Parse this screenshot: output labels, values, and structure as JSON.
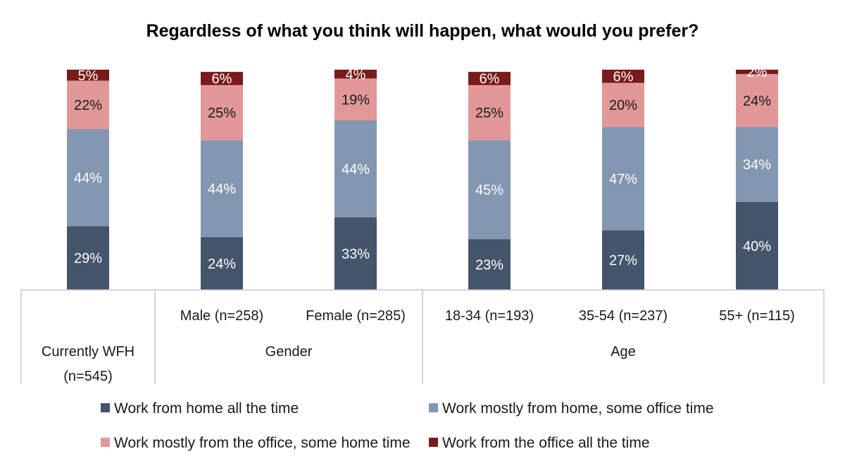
{
  "chart_data": {
    "type": "bar",
    "stacked": true,
    "percent": true,
    "title": "Regardless of what you think will happen, what would you prefer?",
    "categories": [
      "Currently WFH (n=545)",
      "Male (n=258)",
      "Female (n=285)",
      "18-34 (n=193)",
      "35-54 (n=237)",
      "55+ (n=115)"
    ],
    "category_lines": [
      [
        "Currently WFH",
        "(n=545)"
      ],
      [
        "Male (n=258)"
      ],
      [
        "Female (n=285)"
      ],
      [
        "18-34 (n=193)"
      ],
      [
        "35-54 (n=237)"
      ],
      [
        "55+ (n=115)"
      ]
    ],
    "groups": [
      {
        "label": "",
        "categories": [
          0
        ]
      },
      {
        "label": "Gender",
        "categories": [
          1,
          2
        ]
      },
      {
        "label": "Age",
        "categories": [
          3,
          4,
          5
        ]
      }
    ],
    "series": [
      {
        "name": "Work from home all the time",
        "color": "#44546a",
        "label_color": "#ffffff",
        "values": [
          29,
          24,
          33,
          23,
          27,
          40
        ]
      },
      {
        "name": "Work mostly from home, some office time",
        "color": "#8497b0",
        "label_color": "#ffffff",
        "values": [
          44,
          44,
          44,
          45,
          47,
          34
        ]
      },
      {
        "name": "Work mostly from the office, some home time",
        "color": "#e29898",
        "label_color": "#1a1a1a",
        "values": [
          22,
          25,
          19,
          25,
          20,
          24
        ]
      },
      {
        "name": "Work from the office all the time",
        "color": "#7a1a1a",
        "label_color": "#ffffff",
        "values": [
          5,
          6,
          4,
          6,
          6,
          2
        ]
      }
    ],
    "ylim": [
      0,
      100
    ],
    "grid": false,
    "legend_position": "bottom"
  }
}
